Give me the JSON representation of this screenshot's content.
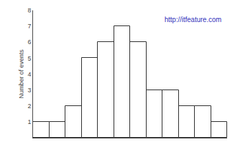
{
  "chart_data": {
    "type": "bar",
    "categories": [
      null,
      null,
      null,
      null,
      null,
      null,
      null,
      null,
      null,
      null,
      null,
      null
    ],
    "values": [
      1,
      1,
      2,
      5,
      6,
      7,
      6,
      3,
      3,
      2,
      2,
      1
    ],
    "color": "#ffffff",
    "ylabel": "Number of events",
    "ylim": [
      0,
      8
    ],
    "yticks": [
      1,
      2,
      3,
      4,
      5,
      6,
      7,
      8
    ],
    "grid": false,
    "tick_labels": "y",
    "annotations": [
      {
        "text": "http://itfeature.com",
        "color": "#3333bb"
      }
    ]
  }
}
